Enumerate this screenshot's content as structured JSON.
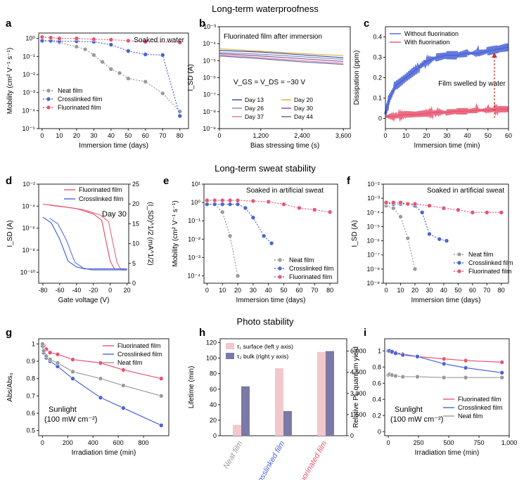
{
  "section_titles": {
    "waterproof": "Long-term waterproofness",
    "sweat": "Long-term sweat stability",
    "photo": "Photo stability"
  },
  "colors": {
    "neat": "#9a9a9a",
    "crosslinked": "#4a63d6",
    "fluorinated": "#e8546e",
    "day_purple": "#6a4fa0"
  },
  "chart_data": [
    {
      "id": "a",
      "type": "line",
      "panel_label": "a",
      "annotation": "Soaked in water",
      "xlabel": "Immersion time (days)",
      "ylabel": "Mobility (cm² V⁻¹ s⁻¹)",
      "xlim": [
        -2,
        85
      ],
      "ylog": true,
      "ylim_exp": [
        -5,
        0.3
      ],
      "xticks": [
        0,
        10,
        20,
        30,
        40,
        50,
        60,
        70,
        80
      ],
      "yticks": [
        {
          "v": 0,
          "label": "10⁰"
        },
        {
          "v": -1,
          "label": "10⁻¹"
        },
        {
          "v": -2,
          "label": "10⁻²"
        },
        {
          "v": -3,
          "label": "10⁻³"
        },
        {
          "v": -4,
          "label": "10⁻⁴"
        },
        {
          "v": -5,
          "label": "10⁻⁵"
        }
      ],
      "legend": [
        "Neat film",
        "Crosslinked film",
        "Fluorinated film"
      ],
      "series": [
        {
          "name": "Neat film",
          "key": "neat",
          "x": [
            0,
            5,
            10,
            20,
            25,
            30,
            35,
            40,
            45,
            50,
            60,
            70,
            80
          ],
          "y": [
            0.7,
            0.7,
            0.6,
            0.35,
            0.25,
            0.12,
            0.05,
            0.02,
            0.012,
            0.006,
            0.004,
            0.0009,
            9e-05
          ]
        },
        {
          "name": "Crosslinked film",
          "key": "crosslinked",
          "x": [
            0,
            5,
            10,
            20,
            30,
            40,
            50,
            60,
            70,
            80
          ],
          "y": [
            0.75,
            0.75,
            0.7,
            0.7,
            0.65,
            0.45,
            0.2,
            0.13,
            0.12,
            5e-05
          ]
        },
        {
          "name": "Fluorinated film",
          "key": "fluorinated",
          "x": [
            0,
            5,
            10,
            20,
            30,
            40,
            50,
            60,
            80
          ],
          "y": [
            1.2,
            1.1,
            1.0,
            1.0,
            0.9,
            0.85,
            0.75,
            0.65,
            0.6
          ]
        }
      ]
    },
    {
      "id": "b",
      "type": "line",
      "panel_label": "b",
      "annotation": "Fluorinated film after immersion",
      "formula": "V_GS = V_DS = −30 V",
      "xlabel": "Bias stressing time (s)",
      "ylabel": "I_SD (A)",
      "xlim": [
        0,
        3800
      ],
      "ylog": true,
      "ylim_exp": [
        -9,
        -3
      ],
      "xticks": [
        {
          "v": 0,
          "label": "0"
        },
        {
          "v": 1200,
          "label": "1,200"
        },
        {
          "v": 2400,
          "label": "2,400"
        },
        {
          "v": 3600,
          "label": "3,600"
        }
      ],
      "yticks": [
        {
          "v": -3,
          "label": "10⁻³"
        },
        {
          "v": -4,
          "label": "10⁻⁴"
        },
        {
          "v": -5,
          "label": "10⁻⁵"
        },
        {
          "v": -6,
          "label": "10⁻⁶"
        },
        {
          "v": -7,
          "label": "10⁻⁷"
        },
        {
          "v": -8,
          "label": "10⁻⁸"
        },
        {
          "v": -9,
          "label": "10⁻⁹"
        }
      ],
      "series": [
        {
          "name": "Day 13",
          "key": "c13",
          "x": [
            0,
            1200,
            2400,
            3600
          ],
          "y": [
            4e-05,
            3.2e-05,
            2.2e-05,
            1.5e-05
          ]
        },
        {
          "name": "Day 20",
          "key": "c20",
          "x": [
            0,
            1200,
            2400,
            3600
          ],
          "y": [
            5e-05,
            3.6e-05,
            2.6e-05,
            2e-05
          ]
        },
        {
          "name": "Day 26",
          "key": "c26",
          "x": [
            0,
            1200,
            2400,
            3600
          ],
          "y": [
            3e-05,
            2.4e-05,
            1.7e-05,
            1.2e-05
          ]
        },
        {
          "name": "Day 30",
          "key": "c30",
          "x": [
            0,
            1200,
            2400,
            3600
          ],
          "y": [
            2.6e-05,
            1.9e-05,
            1.3e-05,
            9e-06
          ]
        },
        {
          "name": "Day 37",
          "key": "c37",
          "x": [
            0,
            1200,
            2400,
            3600
          ],
          "y": [
            2.2e-05,
            1.5e-05,
            1e-05,
            7e-06
          ]
        },
        {
          "name": "Day 44",
          "key": "c44",
          "x": [
            0,
            1200,
            2400,
            3600
          ],
          "y": [
            1.9e-05,
            1.3e-05,
            8.5e-06,
            6e-06
          ]
        }
      ],
      "legend_labels": [
        "Day 13",
        "Day 20",
        "Day 26",
        "Day 30",
        "Day 37",
        "Day 44"
      ]
    },
    {
      "id": "c",
      "type": "line",
      "panel_label": "c",
      "xlabel": "Immersion time (min)",
      "ylabel": "Dissipation (ppm)",
      "xlim": [
        0,
        60
      ],
      "ylim": [
        -0.05,
        0.45
      ],
      "xticks": [
        0,
        10,
        20,
        30,
        40,
        50,
        60
      ],
      "yticks": [
        0,
        0.1,
        0.2,
        0.3,
        0.4
      ],
      "legend": [
        "Without fluorination",
        "With fluorination"
      ],
      "annotation": "Film swelled by water",
      "series": [
        {
          "name": "Without fluorination",
          "key": "crosslinked",
          "x": [
            0,
            2,
            5,
            10,
            15,
            20,
            25,
            30,
            35,
            40,
            45,
            50,
            55,
            60
          ],
          "y": [
            0.02,
            0.1,
            0.16,
            0.2,
            0.24,
            0.28,
            0.3,
            0.31,
            0.31,
            0.32,
            0.32,
            0.33,
            0.34,
            0.35
          ]
        },
        {
          "name": "With fluorination",
          "key": "fluorinated",
          "x": [
            0,
            5,
            10,
            15,
            20,
            25,
            30,
            35,
            40,
            45,
            50,
            55,
            60
          ],
          "y": [
            0.01,
            0.01,
            0.02,
            0.02,
            0.025,
            0.03,
            0.03,
            0.035,
            0.035,
            0.04,
            0.04,
            0.045,
            0.045
          ]
        }
      ]
    },
    {
      "id": "d",
      "type": "line",
      "panel_label": "d",
      "annotation": "Day 30",
      "xlabel": "Gate voltage (V)",
      "ylabel": "I_SD (A)",
      "ylabel_right": "(I_SD)^1/2 (mA^1/2)",
      "xlim": [
        -85,
        22
      ],
      "ylog": true,
      "ylim_exp": [
        -11,
        -2
      ],
      "y2lim": [
        0,
        25
      ],
      "xticks": [
        -80,
        -60,
        -40,
        -20,
        0,
        20
      ],
      "yticks": [
        {
          "v": -2,
          "label": "10⁻²"
        },
        {
          "v": -4,
          "label": "10⁻⁴"
        },
        {
          "v": -6,
          "label": "10⁻⁶"
        },
        {
          "v": -8,
          "label": "10⁻⁸"
        },
        {
          "v": -10,
          "label": "10⁻¹⁰"
        }
      ],
      "y2ticks": [
        0,
        5,
        10,
        15,
        20,
        25
      ],
      "legend": [
        "Fluorinated film",
        "Crosslinked film"
      ],
      "series": [
        {
          "name": "Fluorinated film",
          "key": "fluorinated",
          "x": [
            -80,
            -60,
            -40,
            -20,
            -10,
            0,
            5,
            10,
            20
          ],
          "y": [
            0.00015,
            0.0001,
            6e-05,
            2e-05,
            5e-06,
            1e-09,
            2e-10,
            2e-10,
            2e-10
          ]
        },
        {
          "name": "Crosslinked film",
          "key": "crosslinked",
          "x": [
            -80,
            -70,
            -60,
            -50,
            -40,
            -30,
            -20,
            0,
            20
          ],
          "y": [
            1e-05,
            3e-06,
            1e-07,
            1e-09,
            3e-10,
            2e-10,
            2e-10,
            2e-10,
            2e-10
          ]
        }
      ]
    },
    {
      "id": "e",
      "type": "line",
      "panel_label": "e",
      "annotation": "Soaked in artificial sweat",
      "xlabel": "Immersion time (days)",
      "ylabel": "Mobility (cm² V⁻¹ s⁻¹)",
      "xlim": [
        -2,
        85
      ],
      "ylog": true,
      "ylim_exp": [
        -4.4,
        1
      ],
      "xticks": [
        0,
        10,
        20,
        30,
        40,
        50,
        60,
        70,
        80
      ],
      "yticks": [
        {
          "v": 1,
          "label": "10¹"
        },
        {
          "v": 0,
          "label": "10⁰"
        },
        {
          "v": -1,
          "label": "10⁻¹"
        },
        {
          "v": -2,
          "label": "10⁻²"
        },
        {
          "v": -3,
          "label": "10⁻³"
        },
        {
          "v": -4,
          "label": "10⁻⁴"
        }
      ],
      "legend": [
        "Neat film",
        "Crosslinked film",
        "Fluorinated film"
      ],
      "series": [
        {
          "name": "Neat film",
          "key": "neat",
          "x": [
            0,
            5,
            10,
            15,
            20
          ],
          "y": [
            0.8,
            0.8,
            0.3,
            0.015,
            0.0001
          ]
        },
        {
          "name": "Crosslinked film",
          "key": "crosslinked",
          "x": [
            0,
            5,
            10,
            15,
            20,
            25,
            30,
            37,
            42
          ],
          "y": [
            0.8,
            0.8,
            0.8,
            0.8,
            0.8,
            0.5,
            0.15,
            0.015,
            0.006
          ]
        },
        {
          "name": "Fluorinated film",
          "key": "fluorinated",
          "x": [
            0,
            5,
            10,
            15,
            20,
            30,
            40,
            50,
            60,
            70,
            80
          ],
          "y": [
            1.3,
            1.3,
            1.3,
            1.3,
            1.3,
            1.2,
            1.1,
            0.8,
            0.5,
            0.4,
            0.3
          ]
        }
      ]
    },
    {
      "id": "f",
      "type": "line",
      "panel_label": "f",
      "annotation": "Soaked in artificial sweat",
      "xlabel": "Immersion time (days)",
      "ylabel": "I_SD (A)",
      "xlim": [
        -2,
        85
      ],
      "ylog": true,
      "ylim_exp": [
        -9,
        -2
      ],
      "xticks": [
        0,
        10,
        20,
        30,
        40,
        50,
        60,
        70,
        80
      ],
      "yticks": [
        {
          "v": -2,
          "label": "10⁻²"
        },
        {
          "v": -3,
          "label": "10⁻³"
        },
        {
          "v": -4,
          "label": "10⁻⁴"
        },
        {
          "v": -5,
          "label": "10⁻⁵"
        },
        {
          "v": -6,
          "label": "10⁻⁶"
        },
        {
          "v": -7,
          "label": "10⁻⁷"
        },
        {
          "v": -8,
          "label": "10⁻⁸"
        },
        {
          "v": -9,
          "label": "10⁻⁹"
        }
      ],
      "legend": [
        "Neat film",
        "Crosslinked film",
        "Fluorinated film"
      ],
      "series": [
        {
          "name": "Neat film",
          "key": "neat",
          "x": [
            0,
            5,
            10,
            15,
            20
          ],
          "y": [
            0.0003,
            0.0002,
            5e-05,
            1.5e-06,
            1e-08
          ]
        },
        {
          "name": "Crosslinked film",
          "key": "crosslinked",
          "x": [
            0,
            5,
            10,
            15,
            20,
            25,
            30,
            37,
            42
          ],
          "y": [
            0.00045,
            0.0004,
            0.0004,
            0.0004,
            0.0003,
            0.0001,
            3e-06,
            1.3e-06,
            1e-06
          ]
        },
        {
          "name": "Fluorinated film",
          "key": "fluorinated",
          "x": [
            0,
            5,
            10,
            15,
            20,
            30,
            40,
            50,
            60,
            70,
            80
          ],
          "y": [
            0.0005,
            0.0005,
            0.0005,
            0.0004,
            0.0004,
            0.0003,
            0.0002,
            0.00015,
            0.0001,
            0.0001,
            0.0001
          ]
        }
      ]
    },
    {
      "id": "g",
      "type": "line",
      "panel_label": "g",
      "annotation": "Sunlight",
      "annotation2": "(100 mW cm⁻²)",
      "xlabel": "Irradiation time (min)",
      "ylabel": "Abs/Abs₀",
      "xlim": [
        -30,
        1000
      ],
      "ylim": [
        0.47,
        1.03
      ],
      "xticks": [
        0,
        200,
        400,
        600,
        800
      ],
      "yticks": [
        0.5,
        0.6,
        0.7,
        0.8,
        0.9,
        1.0
      ],
      "legend": [
        "Fluorinated film",
        "Crosslinked film",
        "Neat film"
      ],
      "series": [
        {
          "name": "Fluorinated film",
          "key": "fluorinated",
          "x": [
            0,
            10,
            30,
            60,
            120,
            240,
            460,
            640,
            940
          ],
          "y": [
            1.0,
            0.99,
            0.97,
            0.95,
            0.94,
            0.91,
            0.89,
            0.85,
            0.8
          ]
        },
        {
          "name": "Crosslinked film",
          "key": "crosslinked",
          "x": [
            0,
            10,
            30,
            60,
            120,
            240,
            460,
            640,
            940
          ],
          "y": [
            0.99,
            0.95,
            0.92,
            0.9,
            0.87,
            0.8,
            0.69,
            0.63,
            0.53
          ]
        },
        {
          "name": "Neat film",
          "key": "neat",
          "x": [
            0,
            10,
            30,
            60,
            120,
            240,
            460,
            640,
            940
          ],
          "y": [
            1.0,
            0.96,
            0.93,
            0.91,
            0.89,
            0.84,
            0.8,
            0.76,
            0.7
          ]
        }
      ]
    },
    {
      "id": "h",
      "type": "bar",
      "panel_label": "h",
      "ylabel": "Lifetime (min)",
      "ylim": [
        0,
        125
      ],
      "y2lim": [
        0,
        6875
      ],
      "yticks": [
        0,
        20,
        40,
        60,
        80,
        100,
        120
      ],
      "y2ticks": [
        {
          "v": 0,
          "label": "0"
        },
        {
          "v": 1500,
          "label": "1,500"
        },
        {
          "v": 3000,
          "label": "3,000"
        },
        {
          "v": 4500,
          "label": "4,500"
        },
        {
          "v": 6000,
          "label": "6,000"
        }
      ],
      "categories": [
        "Neat film",
        "Crosslinked film",
        "Fluorinated film"
      ],
      "legend": [
        "τ₁ surface (left y axis)",
        "τ₂ bulk (right y axis)"
      ],
      "series": [
        {
          "name": "τ₁ surface (left y axis)",
          "key": "tau1",
          "values": [
            14,
            87,
            108
          ]
        },
        {
          "name": "τ₂ bulk (right y axis)",
          "key": "tau2",
          "values": [
            3500,
            1750,
            6000
          ]
        }
      ]
    },
    {
      "id": "i",
      "type": "line",
      "panel_label": "i",
      "annotation": "Sunlight",
      "annotation2": "(100 mW cm⁻²)",
      "xlabel": "Irradiation time (min)",
      "ylabel": "Relative PL quantum yield",
      "xlim": [
        -30,
        1000
      ],
      "ylim": [
        -0.05,
        1.15
      ],
      "xticks": [
        {
          "v": 0,
          "label": "0"
        },
        {
          "v": 250,
          "label": "250"
        },
        {
          "v": 500,
          "label": "500"
        },
        {
          "v": 750,
          "label": "750"
        },
        {
          "v": 1000,
          "label": "1,000"
        }
      ],
      "yticks": [
        0,
        0.2,
        0.4,
        0.6,
        0.8,
        1.0
      ],
      "legend": [
        "Fluorinated film",
        "Crosslinked film",
        "Neat film"
      ],
      "series": [
        {
          "name": "Fluorinated film",
          "key": "fluorinated",
          "x": [
            0,
            10,
            30,
            60,
            120,
            240,
            460,
            640,
            940
          ],
          "y": [
            1.0,
            0.99,
            0.98,
            0.98,
            0.96,
            0.93,
            0.9,
            0.88,
            0.86
          ]
        },
        {
          "name": "Crosslinked film",
          "key": "crosslinked",
          "x": [
            0,
            10,
            30,
            60,
            120,
            240,
            460,
            640,
            940
          ],
          "y": [
            1.0,
            1.0,
            0.99,
            0.97,
            0.95,
            0.93,
            0.84,
            0.79,
            0.73
          ]
        },
        {
          "name": "Neat film",
          "key": "neat",
          "x": [
            0,
            10,
            30,
            60,
            120,
            240,
            460,
            640,
            940
          ],
          "y": [
            0.7,
            0.71,
            0.7,
            0.69,
            0.68,
            0.68,
            0.67,
            0.67,
            0.67
          ]
        }
      ]
    }
  ]
}
